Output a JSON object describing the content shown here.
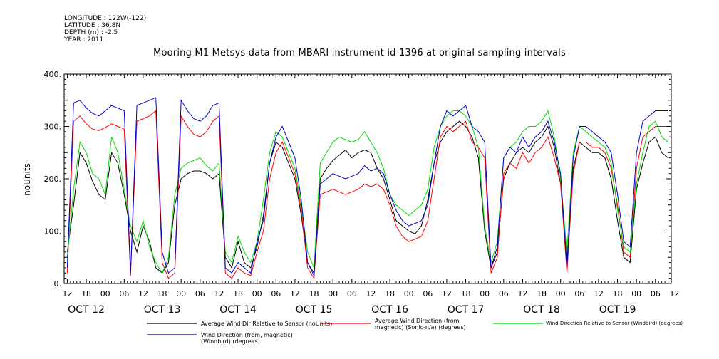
{
  "meta": {
    "longitude": "LONGITUDE : 122W(-122)",
    "latitude": "LATITUDE : 36.8N",
    "depth": "DEPTH (m) : -2.5",
    "year": "YEAR : 2011"
  },
  "chart_data": {
    "type": "line",
    "title": "Mooring M1 Metsys data from MBARI instrument id 1396 at original sampling intervals",
    "ylabel": "noUnits",
    "xlabel": "",
    "ylim": [
      0,
      400
    ],
    "yticks": [
      0,
      100,
      200,
      300,
      400
    ],
    "xlim_hours": [
      -1,
      191
    ],
    "hour_tick_labels": [
      "12",
      "18",
      "00",
      "06",
      "12",
      "18",
      "00",
      "06",
      "12",
      "18",
      "00",
      "06",
      "12",
      "18",
      "00",
      "06",
      "12",
      "18",
      "00",
      "06",
      "12",
      "18",
      "00",
      "06",
      "12",
      "18",
      "00",
      "06",
      "12",
      "18",
      "00",
      "06",
      "12"
    ],
    "day_labels": [
      "OCT 12",
      "OCT 13",
      "OCT 14",
      "OCT 15",
      "OCT 16",
      "OCT 17",
      "OCT 18",
      "OCT 19"
    ],
    "grid": false,
    "legend_position": "bottom",
    "series": [
      {
        "name": "Average Wind Dir Relative to Sensor (noUnits)",
        "color": "#000000",
        "x": [
          0,
          2,
          4,
          6,
          8,
          10,
          12,
          14,
          16,
          18,
          20,
          22,
          24,
          26,
          28,
          30,
          32,
          34,
          36,
          38,
          40,
          42,
          44,
          46,
          48,
          50,
          52,
          54,
          56,
          58,
          60,
          62,
          64,
          66,
          68,
          70,
          72,
          74,
          76,
          78,
          80,
          82,
          84,
          86,
          88,
          90,
          92,
          94,
          96,
          98,
          100,
          102,
          104,
          106,
          108,
          110,
          112,
          114,
          116,
          118,
          120,
          122,
          124,
          126,
          128,
          130,
          132,
          134,
          136,
          138,
          140,
          142,
          144,
          146,
          148,
          150,
          152,
          154,
          156,
          158,
          160,
          162,
          164,
          166,
          168,
          170,
          172,
          174,
          176,
          178,
          180,
          182,
          184,
          186,
          188,
          190
        ],
        "y": [
          60,
          150,
          250,
          230,
          195,
          170,
          160,
          250,
          230,
          170,
          100,
          60,
          110,
          80,
          30,
          20,
          40,
          150,
          200,
          210,
          215,
          215,
          210,
          200,
          210,
          50,
          30,
          80,
          40,
          30,
          70,
          130,
          230,
          270,
          260,
          230,
          200,
          130,
          40,
          20,
          200,
          220,
          235,
          245,
          255,
          240,
          250,
          255,
          250,
          220,
          200,
          160,
          120,
          110,
          100,
          95,
          110,
          160,
          230,
          270,
          290,
          300,
          310,
          300,
          280,
          240,
          100,
          30,
          60,
          200,
          230,
          250,
          260,
          250,
          270,
          280,
          300,
          260,
          190,
          40,
          220,
          270,
          260,
          250,
          250,
          240,
          200,
          120,
          50,
          40,
          180,
          230,
          270,
          280,
          250,
          240
        ]
      },
      {
        "name": "Average Wind Direction (from, magnetic) (Sonic-n/a) (degrees)",
        "color": "#ff0000",
        "x": [
          0,
          2,
          4,
          6,
          8,
          10,
          12,
          14,
          16,
          18,
          20,
          22,
          24,
          26,
          28,
          30,
          32,
          34,
          36,
          38,
          40,
          42,
          44,
          46,
          48,
          50,
          52,
          54,
          56,
          58,
          60,
          62,
          64,
          66,
          68,
          70,
          72,
          74,
          76,
          78,
          80,
          82,
          84,
          86,
          88,
          90,
          92,
          94,
          96,
          98,
          100,
          102,
          104,
          106,
          108,
          110,
          112,
          114,
          116,
          118,
          120,
          122,
          124,
          126,
          128,
          130,
          132,
          134,
          136,
          138,
          140,
          142,
          144,
          146,
          148,
          150,
          152,
          154,
          156,
          158,
          160,
          162,
          164,
          166,
          168,
          170,
          172,
          174,
          176,
          178,
          180,
          182,
          184,
          186,
          188,
          190
        ],
        "y": [
          20,
          310,
          320,
          305,
          295,
          292,
          298,
          305,
          300,
          295,
          15,
          310,
          315,
          320,
          330,
          40,
          10,
          20,
          320,
          300,
          285,
          280,
          290,
          310,
          320,
          20,
          10,
          30,
          20,
          15,
          60,
          100,
          200,
          250,
          270,
          240,
          210,
          140,
          30,
          10,
          170,
          175,
          180,
          175,
          170,
          175,
          180,
          190,
          185,
          190,
          180,
          150,
          110,
          90,
          80,
          85,
          90,
          120,
          200,
          280,
          300,
          290,
          300,
          310,
          270,
          260,
          240,
          20,
          50,
          210,
          230,
          220,
          250,
          230,
          250,
          260,
          280,
          240,
          190,
          20,
          210,
          270,
          270,
          260,
          260,
          250,
          220,
          150,
          60,
          50,
          220,
          280,
          290,
          300,
          300,
          300
        ]
      },
      {
        "name": "Wind Direction Relative to Sensor (Windbird) (degrees)",
        "color": "#00dd00",
        "x": [
          0,
          2,
          4,
          6,
          8,
          10,
          12,
          14,
          16,
          18,
          20,
          22,
          24,
          26,
          28,
          30,
          32,
          34,
          36,
          38,
          40,
          42,
          44,
          46,
          48,
          50,
          52,
          54,
          56,
          58,
          60,
          62,
          64,
          66,
          68,
          70,
          72,
          74,
          76,
          78,
          80,
          82,
          84,
          86,
          88,
          90,
          92,
          94,
          96,
          98,
          100,
          102,
          104,
          106,
          108,
          110,
          112,
          114,
          116,
          118,
          120,
          122,
          124,
          126,
          128,
          130,
          132,
          134,
          136,
          138,
          140,
          142,
          144,
          146,
          148,
          150,
          152,
          154,
          156,
          158,
          160,
          162,
          164,
          166,
          168,
          170,
          172,
          174,
          176,
          178,
          180,
          182,
          184,
          186,
          188,
          190
        ],
        "y": [
          50,
          180,
          270,
          250,
          210,
          200,
          170,
          280,
          250,
          180,
          110,
          80,
          120,
          70,
          40,
          20,
          50,
          170,
          220,
          230,
          235,
          240,
          225,
          215,
          230,
          60,
          40,
          90,
          60,
          40,
          80,
          160,
          250,
          290,
          280,
          250,
          220,
          150,
          60,
          30,
          230,
          250,
          270,
          280,
          275,
          270,
          275,
          290,
          270,
          250,
          220,
          170,
          150,
          140,
          130,
          140,
          150,
          180,
          260,
          300,
          320,
          330,
          330,
          320,
          300,
          260,
          110,
          40,
          80,
          240,
          260,
          270,
          290,
          300,
          300,
          310,
          330,
          280,
          200,
          60,
          250,
          300,
          290,
          280,
          270,
          260,
          230,
          140,
          70,
          60,
          190,
          250,
          300,
          310,
          280,
          270
        ]
      },
      {
        "name": "Wind Direction (from, magnetic) (Windbird) (degrees)",
        "color": "#0000cc",
        "x": [
          0,
          2,
          4,
          6,
          8,
          10,
          12,
          14,
          16,
          18,
          20,
          22,
          24,
          26,
          28,
          30,
          32,
          34,
          36,
          38,
          40,
          42,
          44,
          46,
          48,
          50,
          52,
          54,
          56,
          58,
          60,
          62,
          64,
          66,
          68,
          70,
          72,
          74,
          76,
          78,
          80,
          82,
          84,
          86,
          88,
          90,
          92,
          94,
          96,
          98,
          100,
          102,
          104,
          106,
          108,
          110,
          112,
          114,
          116,
          118,
          120,
          122,
          124,
          126,
          128,
          130,
          132,
          134,
          136,
          138,
          140,
          142,
          144,
          146,
          148,
          150,
          152,
          154,
          156,
          158,
          160,
          162,
          164,
          166,
          168,
          170,
          172,
          174,
          176,
          178,
          180,
          182,
          184,
          186,
          188,
          190
        ],
        "y": [
          30,
          345,
          350,
          335,
          325,
          320,
          330,
          340,
          335,
          330,
          20,
          340,
          345,
          350,
          355,
          60,
          20,
          30,
          350,
          330,
          315,
          310,
          320,
          340,
          345,
          30,
          20,
          40,
          30,
          20,
          80,
          120,
          230,
          280,
          300,
          270,
          240,
          160,
          40,
          15,
          190,
          200,
          210,
          205,
          200,
          205,
          210,
          225,
          215,
          220,
          210,
          170,
          140,
          120,
          110,
          115,
          120,
          150,
          230,
          300,
          330,
          320,
          330,
          340,
          300,
          290,
          270,
          30,
          70,
          240,
          260,
          250,
          280,
          260,
          280,
          290,
          310,
          270,
          210,
          30,
          240,
          300,
          300,
          290,
          280,
          270,
          250,
          170,
          80,
          70,
          250,
          310,
          320,
          330,
          330,
          330
        ]
      }
    ]
  }
}
